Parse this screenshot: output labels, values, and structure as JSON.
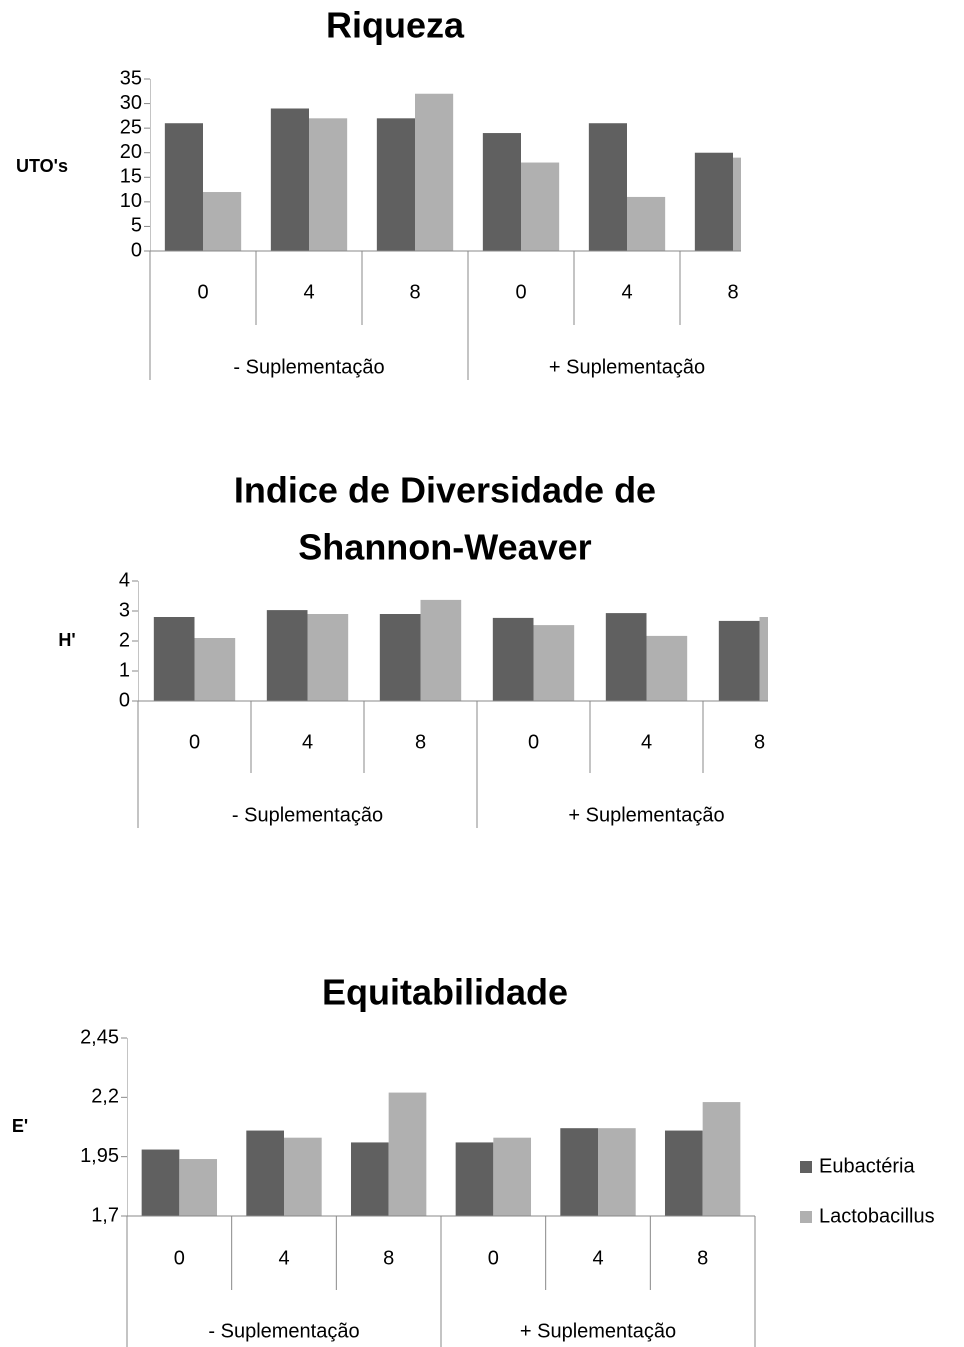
{
  "chart_data": [
    {
      "type": "bar",
      "title": [
        "Riqueza"
      ],
      "ylabel": "UTO's",
      "categories": [
        "0",
        "4",
        "8",
        "0",
        "4",
        "8"
      ],
      "groups": [
        "- Suplementação",
        "+ Suplementação"
      ],
      "series": [
        {
          "color": "#606060",
          "values": [
            26,
            29,
            27,
            24,
            26,
            20
          ]
        },
        {
          "color": "#b0b0b0",
          "values": [
            12,
            27,
            32,
            18,
            11,
            19
          ]
        }
      ],
      "ylim": [
        0,
        35
      ],
      "yticks": [
        0,
        5,
        10,
        15,
        20,
        25,
        30,
        35
      ]
    },
    {
      "type": "bar",
      "title": [
        "Indice de Diversidade de",
        "Shannon-Weaver"
      ],
      "ylabel": "H'",
      "categories": [
        "0",
        "4",
        "8",
        "0",
        "4",
        "8"
      ],
      "groups": [
        "- Suplementação",
        "+ Suplementação"
      ],
      "series": [
        {
          "color": "#606060",
          "values": [
            2.8,
            3.03,
            2.9,
            2.77,
            2.93,
            2.67
          ]
        },
        {
          "color": "#b0b0b0",
          "values": [
            2.1,
            2.9,
            3.37,
            2.53,
            2.17,
            2.8
          ]
        }
      ],
      "ylim": [
        0,
        4
      ],
      "yticks": [
        0,
        1,
        2,
        3,
        4
      ]
    },
    {
      "type": "bar",
      "title": [
        "Equitabilidade"
      ],
      "ylabel": "E'",
      "categories": [
        "0",
        "4",
        "8",
        "0",
        "4",
        "8"
      ],
      "groups": [
        "- Suplementação",
        "+ Suplementação"
      ],
      "series": [
        {
          "name": "Eubactéria",
          "color": "#606060",
          "values": [
            1.98,
            2.06,
            2.01,
            2.01,
            2.07,
            2.06
          ]
        },
        {
          "name": "Lactobacillus",
          "color": "#b0b0b0",
          "values": [
            1.94,
            2.03,
            2.22,
            2.03,
            2.07,
            2.18
          ]
        }
      ],
      "ylim": [
        1.7,
        2.45
      ],
      "yticks": [
        {
          "value": 1.7,
          "label": "1,7"
        },
        {
          "value": 1.95,
          "label": "1,95"
        },
        {
          "value": 2.2,
          "label": "2,2"
        },
        {
          "value": 2.45,
          "label": "2,45"
        }
      ],
      "legend": "right"
    }
  ]
}
